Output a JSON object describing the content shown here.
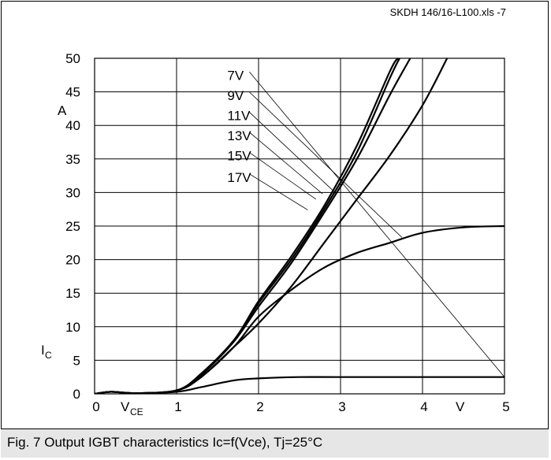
{
  "file_label": "SKDH 146/16-L100.xls -7",
  "caption": "Fig. 7 Output IGBT characteristics Ic=f(Vce), Tj=25°C",
  "colors": {
    "background": "#ffffff",
    "line": "#000000",
    "caption_bg": "#e6e6e6"
  },
  "chart_data": {
    "type": "line",
    "xlim": [
      0,
      5
    ],
    "ylim": [
      0,
      50
    ],
    "x_ticks": [
      "0",
      "1",
      "2",
      "3",
      "4",
      "5"
    ],
    "y_ticks": [
      "0",
      "5",
      "10",
      "15",
      "20",
      "25",
      "30",
      "35",
      "40",
      "45",
      "50"
    ],
    "x_unit": "V",
    "y_unit": "A",
    "xlabel_main": "V",
    "xlabel_sub": "CE",
    "ylabel_main": "I",
    "ylabel_sub": "C",
    "grid": true,
    "series": [
      {
        "name": "17V",
        "points": [
          [
            0,
            0
          ],
          [
            0.2,
            0.3
          ],
          [
            0.5,
            0.1
          ],
          [
            1,
            0.5
          ],
          [
            1.3,
            3
          ],
          [
            1.7,
            8
          ],
          [
            2,
            13.8
          ],
          [
            2.4,
            20.5
          ],
          [
            2.8,
            28
          ],
          [
            3.2,
            37
          ],
          [
            3.6,
            48
          ],
          [
            3.7,
            50
          ]
        ]
      },
      {
        "name": "15V",
        "points": [
          [
            0,
            0
          ],
          [
            0.2,
            0.3
          ],
          [
            0.5,
            0.1
          ],
          [
            1,
            0.5
          ],
          [
            1.3,
            3
          ],
          [
            1.7,
            8
          ],
          [
            2,
            13.5
          ],
          [
            2.4,
            20
          ],
          [
            2.8,
            27.5
          ],
          [
            3.2,
            36
          ],
          [
            3.6,
            47
          ],
          [
            3.72,
            50
          ]
        ]
      },
      {
        "name": "13V",
        "points": [
          [
            0,
            0
          ],
          [
            0.2,
            0.3
          ],
          [
            0.5,
            0.1
          ],
          [
            1,
            0.5
          ],
          [
            1.3,
            2.8
          ],
          [
            1.7,
            7.8
          ],
          [
            2,
            13
          ],
          [
            2.4,
            19.5
          ],
          [
            2.8,
            27
          ],
          [
            3.2,
            35
          ],
          [
            3.6,
            44.5
          ],
          [
            3.85,
            50
          ]
        ]
      },
      {
        "name": "11V",
        "points": [
          [
            0,
            0
          ],
          [
            0.2,
            0.3
          ],
          [
            0.5,
            0.1
          ],
          [
            1,
            0.5
          ],
          [
            1.3,
            2.5
          ],
          [
            1.7,
            7
          ],
          [
            2,
            10.5
          ],
          [
            2.4,
            16
          ],
          [
            2.8,
            22.5
          ],
          [
            3.2,
            29
          ],
          [
            3.6,
            35.5
          ],
          [
            4,
            43
          ],
          [
            4.3,
            50
          ]
        ]
      },
      {
        "name": "9V",
        "points": [
          [
            0,
            0
          ],
          [
            0.2,
            0.3
          ],
          [
            0.5,
            0.1
          ],
          [
            1,
            0.5
          ],
          [
            1.3,
            2.5
          ],
          [
            1.7,
            7
          ],
          [
            2,
            11.5
          ],
          [
            2.4,
            15.5
          ],
          [
            2.8,
            18.8
          ],
          [
            3.2,
            21
          ],
          [
            3.6,
            22.5
          ],
          [
            4,
            24
          ],
          [
            4.5,
            24.8
          ],
          [
            5,
            25
          ]
        ]
      },
      {
        "name": "7V",
        "points": [
          [
            0,
            0
          ],
          [
            0.2,
            0.3
          ],
          [
            0.5,
            0.1
          ],
          [
            1,
            0.3
          ],
          [
            1.3,
            1
          ],
          [
            1.7,
            2
          ],
          [
            2,
            2.3
          ],
          [
            2.5,
            2.5
          ],
          [
            3,
            2.5
          ],
          [
            4,
            2.5
          ],
          [
            5,
            2.5
          ]
        ]
      }
    ],
    "annotations": [
      {
        "text": "7V",
        "label_at": [
          1.85,
          47.5
        ],
        "arrow_to": [
          5.0,
          2.5
        ]
      },
      {
        "text": "9V",
        "label_at": [
          1.85,
          44.5
        ],
        "arrow_to": [
          3.75,
          23.3
        ]
      },
      {
        "text": "11V",
        "label_at": [
          1.85,
          41.5
        ],
        "arrow_to": [
          2.95,
          29.8
        ]
      },
      {
        "text": "13V",
        "label_at": [
          1.85,
          38.5
        ],
        "arrow_to": [
          2.78,
          29.8
        ]
      },
      {
        "text": "15V",
        "label_at": [
          1.85,
          35.5
        ],
        "arrow_to": [
          2.7,
          29.0
        ]
      },
      {
        "text": "17V",
        "label_at": [
          1.85,
          32.3
        ],
        "arrow_to": [
          2.6,
          27.4
        ]
      }
    ]
  }
}
